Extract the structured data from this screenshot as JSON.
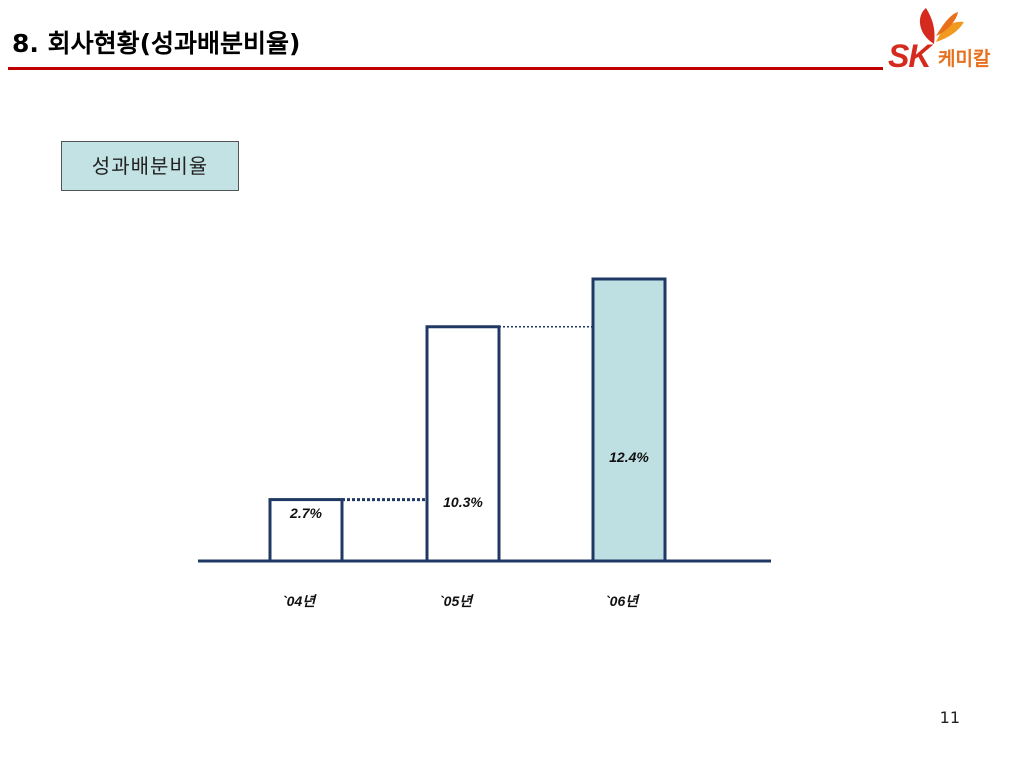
{
  "header": {
    "title": "8. 회사현황(성과배분비율)",
    "accent_color": "#c00000"
  },
  "logo": {
    "brand": "SK",
    "subtitle": "케미칼",
    "icon": "butterfly-logo-icon",
    "brand_color": "#d52b1e",
    "sub_color": "#e8701c"
  },
  "chart_label": "성과배분비율",
  "chart_data": {
    "type": "bar",
    "categories": [
      "`04년",
      "`05년",
      "`06년"
    ],
    "values": [
      2.7,
      10.3,
      12.4
    ],
    "data_labels": [
      "2.7%",
      "10.3%",
      "12.4%"
    ],
    "title": "",
    "xlabel": "",
    "ylabel": "",
    "ylim": [
      0,
      12.4
    ],
    "grid": false,
    "bar_fills": [
      "#ffffff",
      "#ffffff",
      "#bfe0e3"
    ],
    "bar_stroke": "#1f3864"
  },
  "page_number": "11"
}
